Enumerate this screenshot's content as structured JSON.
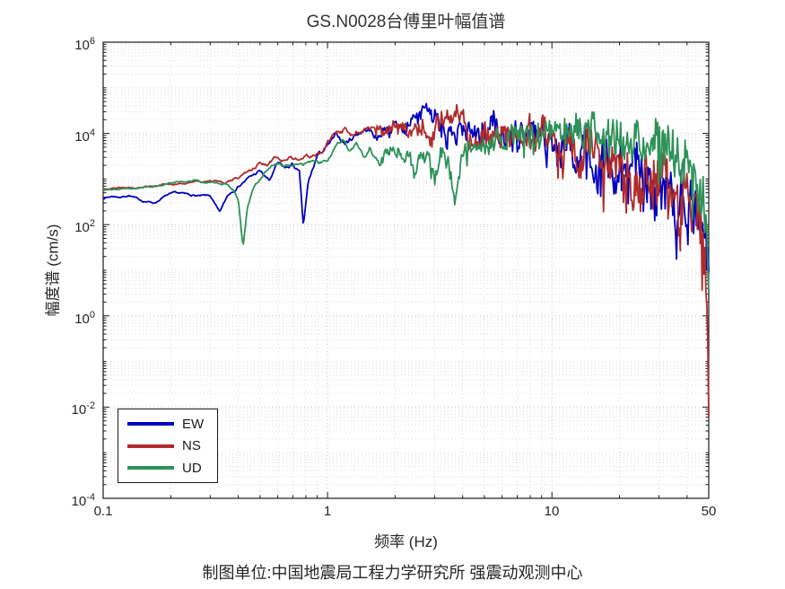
{
  "figure": {
    "title": "GS.N0028台傅里叶幅值谱",
    "caption": "制图单位:中国地震局工程力学研究所 强震动观测中心"
  },
  "chart_data": {
    "type": "line",
    "title": "GS.N0028台傅里叶幅值谱",
    "xlabel": "频率 (Hz)",
    "ylabel": "幅度谱 (cm/s)",
    "xscale": "log",
    "yscale": "log",
    "xlim": [
      0.1,
      50
    ],
    "ylim": [
      0.0001,
      1000000
    ],
    "grid": "major+minor dotted",
    "xticks": [
      {
        "value": 0.1,
        "label": "0.1"
      },
      {
        "value": 1,
        "label": "1"
      },
      {
        "value": 10,
        "label": "10"
      },
      {
        "value": 50,
        "label": "50"
      }
    ],
    "yticks": [
      {
        "base": "10",
        "exp": "6"
      },
      {
        "base": "10",
        "exp": "4"
      },
      {
        "base": "10",
        "exp": "2"
      },
      {
        "base": "10",
        "exp": "0"
      },
      {
        "base": "10",
        "exp": "-2"
      },
      {
        "base": "10",
        "exp": "-4"
      }
    ],
    "legend": {
      "position": "southwest",
      "entries": [
        "EW",
        "NS",
        "UD"
      ]
    },
    "noise": {
      "samples": 640,
      "seed": 7
    },
    "series": [
      {
        "name": "EW",
        "color": "#0000bf",
        "jitter_scale": 1.0,
        "spike_prob": 0.16,
        "points": [
          [
            0.1,
            380
          ],
          [
            0.11,
            420
          ],
          [
            0.12,
            400
          ],
          [
            0.13,
            440
          ],
          [
            0.15,
            330
          ],
          [
            0.17,
            300
          ],
          [
            0.19,
            430
          ],
          [
            0.21,
            500
          ],
          [
            0.24,
            460
          ],
          [
            0.27,
            420
          ],
          [
            0.3,
            430
          ],
          [
            0.33,
            180
          ],
          [
            0.36,
            450
          ],
          [
            0.4,
            700
          ],
          [
            0.45,
            1100
          ],
          [
            0.5,
            1500
          ],
          [
            0.55,
            900
          ],
          [
            0.6,
            2200
          ],
          [
            0.65,
            1700
          ],
          [
            0.7,
            2100
          ],
          [
            0.75,
            1300
          ],
          [
            0.78,
            90
          ],
          [
            0.82,
            800
          ],
          [
            0.9,
            3200
          ],
          [
            1.0,
            5200
          ],
          [
            1.1,
            9000
          ],
          [
            1.2,
            6000
          ],
          [
            1.35,
            10000
          ],
          [
            1.5,
            12500
          ],
          [
            1.65,
            8500
          ],
          [
            1.8,
            11000
          ],
          [
            2.0,
            14000
          ],
          [
            2.2,
            11000
          ],
          [
            2.4,
            20000
          ],
          [
            2.6,
            29000
          ],
          [
            2.8,
            28000
          ],
          [
            3.0,
            24000
          ],
          [
            3.2,
            13000
          ],
          [
            3.5,
            8500
          ],
          [
            3.8,
            11500
          ],
          [
            4.2,
            9000
          ],
          [
            4.6,
            12000
          ],
          [
            5.0,
            9500
          ],
          [
            5.5,
            14000
          ],
          [
            6.0,
            7500
          ],
          [
            6.5,
            11500
          ],
          [
            7.0,
            6800
          ],
          [
            7.5,
            10500
          ],
          [
            8.0,
            12000
          ],
          [
            8.5,
            6000
          ],
          [
            9.0,
            10000
          ],
          [
            9.5,
            7500
          ],
          [
            10.0,
            9000
          ],
          [
            11.0,
            3200
          ],
          [
            12.0,
            6500
          ],
          [
            13.0,
            1600
          ],
          [
            14.0,
            5000
          ],
          [
            15.0,
            2600
          ],
          [
            16.0,
            900
          ],
          [
            17.0,
            4200
          ],
          [
            18.0,
            2000
          ],
          [
            19.0,
            700
          ],
          [
            20.0,
            3200
          ],
          [
            21.5,
            1400
          ],
          [
            23.0,
            2600
          ],
          [
            24.5,
            900
          ],
          [
            26.0,
            1900
          ],
          [
            28.0,
            650
          ],
          [
            30.0,
            1500
          ],
          [
            32.0,
            350
          ],
          [
            34.0,
            1100
          ],
          [
            36.0,
            250
          ],
          [
            38.0,
            800
          ],
          [
            40.0,
            160
          ],
          [
            42.0,
            450
          ],
          [
            44.0,
            700
          ],
          [
            46.0,
            130
          ],
          [
            48.0,
            70
          ],
          [
            49.0,
            30
          ],
          [
            50.0,
            9
          ]
        ]
      },
      {
        "name": "NS",
        "color": "#b02b2b",
        "jitter_scale": 1.0,
        "spike_prob": 0.16,
        "points": [
          [
            0.1,
            600
          ],
          [
            0.12,
            650
          ],
          [
            0.14,
            620
          ],
          [
            0.16,
            700
          ],
          [
            0.19,
            760
          ],
          [
            0.22,
            800
          ],
          [
            0.25,
            850
          ],
          [
            0.28,
            880
          ],
          [
            0.31,
            900
          ],
          [
            0.34,
            820
          ],
          [
            0.38,
            950
          ],
          [
            0.42,
            1200
          ],
          [
            0.46,
            1600
          ],
          [
            0.5,
            2400
          ],
          [
            0.54,
            2000
          ],
          [
            0.58,
            2900
          ],
          [
            0.63,
            2500
          ],
          [
            0.68,
            3100
          ],
          [
            0.74,
            2700
          ],
          [
            0.8,
            3000
          ],
          [
            0.87,
            3300
          ],
          [
            0.95,
            3800
          ],
          [
            1.0,
            6500
          ],
          [
            1.1,
            10000
          ],
          [
            1.2,
            12000
          ],
          [
            1.3,
            9000
          ],
          [
            1.45,
            12500
          ],
          [
            1.6,
            14000
          ],
          [
            1.75,
            11500
          ],
          [
            1.9,
            13500
          ],
          [
            2.1,
            12000
          ],
          [
            2.3,
            8500
          ],
          [
            2.5,
            13500
          ],
          [
            2.7,
            11000
          ],
          [
            2.9,
            6500
          ],
          [
            3.1,
            16000
          ],
          [
            3.4,
            26000
          ],
          [
            3.7,
            32000
          ],
          [
            4.0,
            34000
          ],
          [
            4.2,
            16000
          ],
          [
            4.5,
            8000
          ],
          [
            4.8,
            10500
          ],
          [
            5.2,
            13000
          ],
          [
            5.6,
            9500
          ],
          [
            6.0,
            12500
          ],
          [
            6.5,
            8000
          ],
          [
            7.0,
            11500
          ],
          [
            7.5,
            7000
          ],
          [
            8.0,
            12500
          ],
          [
            8.5,
            6500
          ],
          [
            9.0,
            10500
          ],
          [
            9.5,
            8000
          ],
          [
            10.0,
            9500
          ],
          [
            11.0,
            4000
          ],
          [
            12.0,
            7000
          ],
          [
            13.0,
            2200
          ],
          [
            14.0,
            6000
          ],
          [
            15.0,
            3000
          ],
          [
            16.0,
            7000
          ],
          [
            17.0,
            1600
          ],
          [
            18.0,
            5000
          ],
          [
            19.0,
            2600
          ],
          [
            20.0,
            4200
          ],
          [
            21.0,
            900
          ],
          [
            22.0,
            3200
          ],
          [
            23.0,
            1500
          ],
          [
            24.0,
            4000
          ],
          [
            25.0,
            700
          ],
          [
            26.0,
            2600
          ],
          [
            27.0,
            1100
          ],
          [
            28.0,
            3000
          ],
          [
            29.5,
            550
          ],
          [
            31.0,
            2100
          ],
          [
            33.0,
            350
          ],
          [
            35.0,
            1600
          ],
          [
            37.0,
            240
          ],
          [
            39.0,
            1100
          ],
          [
            41.0,
            130
          ],
          [
            43.0,
            450
          ],
          [
            45.0,
            170
          ],
          [
            47.0,
            60
          ],
          [
            48.5,
            12
          ],
          [
            49.5,
            0.5
          ],
          [
            50.0,
            0.006
          ]
        ]
      },
      {
        "name": "UD",
        "color": "#2e9158",
        "jitter_scale": 0.85,
        "spike_prob": 0.09,
        "points": [
          [
            0.1,
            560
          ],
          [
            0.12,
            600
          ],
          [
            0.14,
            640
          ],
          [
            0.17,
            700
          ],
          [
            0.2,
            800
          ],
          [
            0.23,
            880
          ],
          [
            0.26,
            920
          ],
          [
            0.29,
            870
          ],
          [
            0.32,
            800
          ],
          [
            0.35,
            760
          ],
          [
            0.38,
            600
          ],
          [
            0.4,
            350
          ],
          [
            0.42,
            32
          ],
          [
            0.44,
            250
          ],
          [
            0.47,
            700
          ],
          [
            0.5,
            1000
          ],
          [
            0.55,
            1800
          ],
          [
            0.6,
            2200
          ],
          [
            0.66,
            2000
          ],
          [
            0.72,
            2300
          ],
          [
            0.78,
            2100
          ],
          [
            0.85,
            2400
          ],
          [
            0.92,
            2200
          ],
          [
            1.0,
            2700
          ],
          [
            1.08,
            5200
          ],
          [
            1.16,
            7000
          ],
          [
            1.25,
            4200
          ],
          [
            1.35,
            6200
          ],
          [
            1.45,
            3000
          ],
          [
            1.55,
            5200
          ],
          [
            1.7,
            2200
          ],
          [
            1.85,
            4200
          ],
          [
            2.0,
            4600
          ],
          [
            2.15,
            2600
          ],
          [
            2.3,
            4200
          ],
          [
            2.45,
            1200
          ],
          [
            2.6,
            3600
          ],
          [
            2.8,
            2800
          ],
          [
            3.0,
            700
          ],
          [
            3.2,
            3400
          ],
          [
            3.45,
            2600
          ],
          [
            3.7,
            320
          ],
          [
            3.95,
            3800
          ],
          [
            4.2,
            4400
          ],
          [
            4.5,
            5200
          ],
          [
            4.9,
            7800
          ],
          [
            5.3,
            6200
          ],
          [
            5.7,
            9000
          ],
          [
            6.1,
            7200
          ],
          [
            6.6,
            10000
          ],
          [
            7.1,
            8200
          ],
          [
            7.6,
            11000
          ],
          [
            8.2,
            9000
          ],
          [
            8.8,
            11500
          ],
          [
            9.4,
            9500
          ],
          [
            10.0,
            10500
          ],
          [
            11.0,
            8200
          ],
          [
            12.0,
            11500
          ],
          [
            13.0,
            9200
          ],
          [
            14.0,
            12000
          ],
          [
            15.0,
            10000
          ],
          [
            16.0,
            13000
          ],
          [
            17.0,
            9500
          ],
          [
            18.0,
            11500
          ],
          [
            19.0,
            8500
          ],
          [
            20.0,
            12000
          ],
          [
            21.0,
            7500
          ],
          [
            22.0,
            10500
          ],
          [
            23.0,
            6500
          ],
          [
            24.0,
            9500
          ],
          [
            25.0,
            5500
          ],
          [
            26.0,
            8500
          ],
          [
            27.0,
            4500
          ],
          [
            28.0,
            6500
          ],
          [
            29.5,
            5500
          ],
          [
            31.0,
            5000
          ],
          [
            33.0,
            4200
          ],
          [
            35.0,
            3400
          ],
          [
            37.0,
            2800
          ],
          [
            39.0,
            2200
          ],
          [
            41.0,
            1600
          ],
          [
            43.0,
            1000
          ],
          [
            45.0,
            550
          ],
          [
            47.0,
            260
          ],
          [
            48.5,
            70
          ],
          [
            49.5,
            15
          ],
          [
            50.0,
            3
          ]
        ]
      }
    ]
  },
  "layout_colors": {
    "axis": "#1a1a1a",
    "major_grid": "#c4c4c4",
    "minor_grid": "#dedede",
    "text": "#262626"
  }
}
